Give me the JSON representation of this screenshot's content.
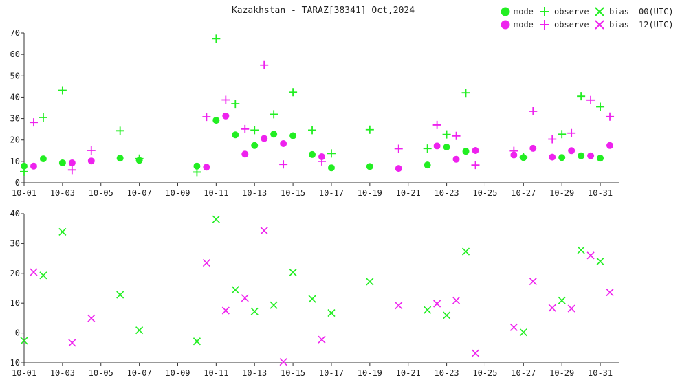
{
  "chart_data": {
    "type": "scatter",
    "title": "Kazakhstan - TARAZ[38341] Oct,2024",
    "colors": {
      "utc00": "#22ee22",
      "utc12": "#ee22ee"
    },
    "legend": {
      "placement": "top-right",
      "rows": [
        {
          "mode": "mode",
          "observe": "observe",
          "bias": "bias",
          "hour": "00(UTC)"
        },
        {
          "mode": "mode",
          "observe": "observe",
          "bias": "bias",
          "hour": "12(UTC)"
        }
      ]
    },
    "x_ticks": [
      "10-01",
      "10-03",
      "10-05",
      "10-07",
      "10-09",
      "10-11",
      "10-13",
      "10-15",
      "10-17",
      "10-19",
      "10-21",
      "10-23",
      "10-25",
      "10-27",
      "10-29",
      "10-31"
    ],
    "x_range": [
      "10-01 00Z",
      "11-01 00Z"
    ],
    "panels": [
      {
        "name": "top",
        "ylim": [
          0,
          70
        ],
        "y_ticks": [
          "0",
          "10",
          "20",
          "30",
          "40",
          "50",
          "60",
          "70"
        ],
        "series": [
          {
            "marker": "circle",
            "hour": "00",
            "points": [
              [
                "10-01",
                7.8
              ],
              [
                "10-02",
                11.2
              ],
              [
                "10-03",
                9.3
              ],
              [
                "10-06",
                11.5
              ],
              [
                "10-07",
                10.5
              ],
              [
                "10-10",
                7.8
              ],
              [
                "10-11",
                29.2
              ],
              [
                "10-12",
                22.4
              ],
              [
                "10-13",
                17.4
              ],
              [
                "10-14",
                22.7
              ],
              [
                "10-15",
                22.0
              ],
              [
                "10-16",
                13.2
              ],
              [
                "10-17",
                7.0
              ],
              [
                "10-19",
                7.6
              ],
              [
                "10-22",
                8.3
              ],
              [
                "10-23",
                16.7
              ],
              [
                "10-24",
                14.7
              ],
              [
                "10-27",
                11.8
              ],
              [
                "10-29",
                11.8
              ],
              [
                "10-30",
                12.6
              ],
              [
                "10-31",
                11.5
              ]
            ]
          },
          {
            "marker": "circle",
            "hour": "12",
            "points": [
              [
                "10-01",
                7.8
              ],
              [
                "10-03",
                9.3
              ],
              [
                "10-04",
                10.2
              ],
              [
                "10-10",
                7.3
              ],
              [
                "10-11",
                31.2
              ],
              [
                "10-12",
                13.4
              ],
              [
                "10-13",
                20.7
              ],
              [
                "10-14",
                18.3
              ],
              [
                "10-16",
                12.2
              ],
              [
                "10-20",
                6.7
              ],
              [
                "10-22",
                17.2
              ],
              [
                "10-23",
                11.0
              ],
              [
                "10-24",
                15.1
              ],
              [
                "10-26",
                13.0
              ],
              [
                "10-27",
                16.1
              ],
              [
                "10-28",
                12.0
              ],
              [
                "10-29",
                15.0
              ],
              [
                "10-30",
                12.6
              ],
              [
                "10-31",
                17.4
              ]
            ]
          },
          {
            "marker": "plus",
            "hour": "00",
            "points": [
              [
                "10-01",
                5.2
              ],
              [
                "10-02",
                30.5
              ],
              [
                "10-03",
                43.2
              ],
              [
                "10-06",
                24.3
              ],
              [
                "10-07",
                11.3
              ],
              [
                "10-10",
                5.0
              ],
              [
                "10-11",
                67.3
              ],
              [
                "10-12",
                36.9
              ],
              [
                "10-13",
                24.6
              ],
              [
                "10-14",
                32.0
              ],
              [
                "10-15",
                42.3
              ],
              [
                "10-16",
                24.6
              ],
              [
                "10-17",
                13.7
              ],
              [
                "10-19",
                24.8
              ],
              [
                "10-22",
                16.0
              ],
              [
                "10-23",
                22.6
              ],
              [
                "10-24",
                42.0
              ],
              [
                "10-27",
                12.0
              ],
              [
                "10-29",
                22.7
              ],
              [
                "10-30",
                40.4
              ],
              [
                "10-31",
                35.5
              ]
            ]
          },
          {
            "marker": "plus",
            "hour": "12",
            "points": [
              [
                "10-01",
                28.2
              ],
              [
                "10-03",
                6.0
              ],
              [
                "10-04",
                15.1
              ],
              [
                "10-10",
                30.8
              ],
              [
                "10-11",
                38.7
              ],
              [
                "10-12",
                25.1
              ],
              [
                "10-13",
                55.0
              ],
              [
                "10-14",
                8.6
              ],
              [
                "10-16",
                10.0
              ],
              [
                "10-20",
                15.9
              ],
              [
                "10-22",
                27.0
              ],
              [
                "10-23",
                21.9
              ],
              [
                "10-24",
                8.3
              ],
              [
                "10-26",
                14.9
              ],
              [
                "10-27",
                33.4
              ],
              [
                "10-28",
                20.4
              ],
              [
                "10-29",
                23.2
              ],
              [
                "10-30",
                38.6
              ],
              [
                "10-31",
                30.9
              ]
            ]
          }
        ]
      },
      {
        "name": "bottom",
        "ylim": [
          -10,
          40
        ],
        "y_ticks": [
          "-10",
          "0",
          "10",
          "20",
          "30",
          "40"
        ],
        "series": [
          {
            "marker": "cross",
            "hour": "00",
            "points": [
              [
                "10-01",
                -2.6
              ],
              [
                "10-02",
                19.3
              ],
              [
                "10-03",
                33.9
              ],
              [
                "10-06",
                12.8
              ],
              [
                "10-07",
                0.9
              ],
              [
                "10-10",
                -2.8
              ],
              [
                "10-11",
                38.1
              ],
              [
                "10-12",
                14.5
              ],
              [
                "10-13",
                7.2
              ],
              [
                "10-14",
                9.3
              ],
              [
                "10-15",
                20.3
              ],
              [
                "10-16",
                11.4
              ],
              [
                "10-17",
                6.7
              ],
              [
                "10-19",
                17.2
              ],
              [
                "10-22",
                7.7
              ],
              [
                "10-23",
                5.9
              ],
              [
                "10-24",
                27.3
              ],
              [
                "10-27",
                0.2
              ],
              [
                "10-29",
                10.9
              ],
              [
                "10-30",
                27.8
              ],
              [
                "10-31",
                24.0
              ]
            ]
          },
          {
            "marker": "cross",
            "hour": "12",
            "points": [
              [
                "10-01",
                20.4
              ],
              [
                "10-03",
                -3.3
              ],
              [
                "10-04",
                4.9
              ],
              [
                "10-10",
                23.5
              ],
              [
                "10-11",
                7.5
              ],
              [
                "10-12",
                11.7
              ],
              [
                "10-13",
                34.3
              ],
              [
                "10-14",
                -9.7
              ],
              [
                "10-16",
                -2.2
              ],
              [
                "10-20",
                9.2
              ],
              [
                "10-22",
                9.8
              ],
              [
                "10-23",
                10.9
              ],
              [
                "10-24",
                -6.8
              ],
              [
                "10-26",
                1.9
              ],
              [
                "10-27",
                17.3
              ],
              [
                "10-28",
                8.4
              ],
              [
                "10-29",
                8.2
              ],
              [
                "10-30",
                26.0
              ],
              [
                "10-31",
                13.6
              ]
            ]
          }
        ]
      }
    ]
  }
}
